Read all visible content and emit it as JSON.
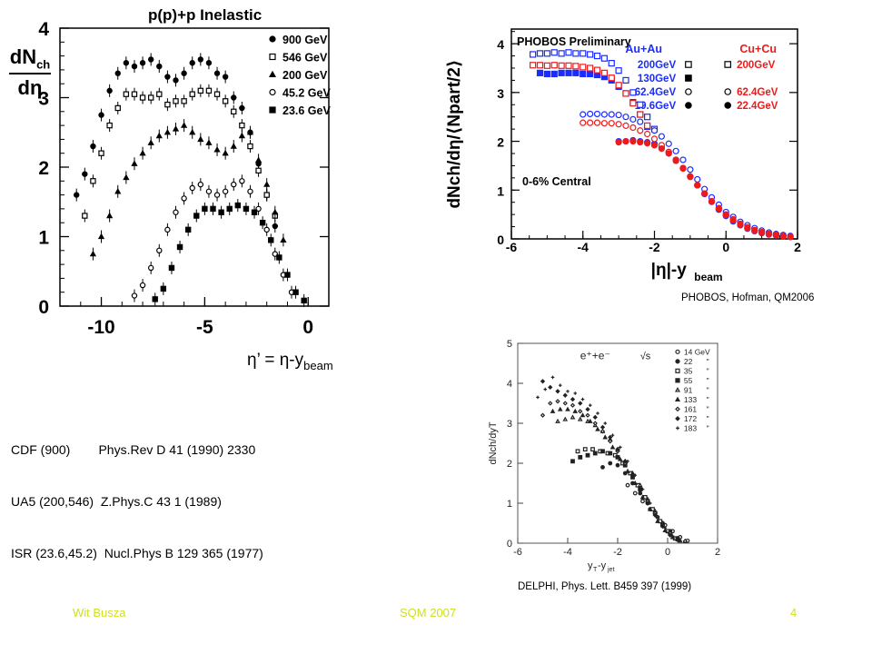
{
  "left_chart": {
    "ylabel_num": "dN",
    "ylabel_num_sub": "ch",
    "ylabel_den": "dη",
    "xaxis_note_lhs": "η’ = η-y",
    "xaxis_note_sub": "beam"
  },
  "references": {
    "line1": "CDF (900)        Phys.Rev D 41 (1990) 2330",
    "line2": "UA5 (200,546)  Z.Phys.C 43 1 (1989)",
    "line3": "ISR (23.6,45.2)  Nucl.Phys B 129 365 (1977)"
  },
  "phobos_credit": "PHOBOS, Hofman, QM2006",
  "delphi_credit": "DELPHI, Phys. Lett. B459 397 (1999)",
  "footer": {
    "author": "Wit Busza",
    "conference": "SQM 2007",
    "page_number": "4"
  },
  "chart_data": [
    {
      "type": "scatter",
      "title": "p(p)+p Inelastic",
      "xlabel": "η’ = η-y_beam",
      "ylabel": "dN_ch/dη",
      "xlim": [
        -12,
        1
      ],
      "ylim": [
        0,
        4
      ],
      "xticks": [
        -10,
        -5,
        0
      ],
      "yticks": [
        0,
        1,
        2,
        3,
        4
      ],
      "legend_position": "top-right",
      "series": [
        {
          "name": "900 GeV",
          "marker": "filled-circle",
          "x": [
            -11.2,
            -10.8,
            -10.4,
            -10.0,
            -9.6,
            -9.2,
            -8.8,
            -8.4,
            -8.0,
            -7.6,
            -7.2,
            -6.8,
            -6.4,
            -6.0,
            -5.6,
            -5.2,
            -4.8,
            -4.4,
            -4.0,
            -3.6,
            -3.2,
            -2.8,
            -2.4,
            -2.0,
            -1.6
          ],
          "y": [
            1.6,
            1.9,
            2.3,
            2.75,
            3.1,
            3.35,
            3.5,
            3.45,
            3.5,
            3.55,
            3.45,
            3.3,
            3.25,
            3.35,
            3.5,
            3.55,
            3.5,
            3.35,
            3.3,
            3.0,
            2.85,
            2.5,
            2.05,
            1.6,
            1.15
          ]
        },
        {
          "name": "546 GeV",
          "marker": "open-square",
          "x": [
            -10.8,
            -10.4,
            -10.0,
            -9.6,
            -9.2,
            -8.8,
            -8.4,
            -8.0,
            -7.6,
            -7.2,
            -6.8,
            -6.4,
            -6.0,
            -5.6,
            -5.2,
            -4.8,
            -4.4,
            -4.0,
            -3.6,
            -3.2,
            -2.8,
            -2.4,
            -2.0,
            -1.6
          ],
          "y": [
            1.3,
            1.8,
            2.2,
            2.6,
            2.85,
            3.05,
            3.05,
            3.0,
            3.0,
            3.05,
            2.9,
            2.95,
            2.95,
            3.05,
            3.1,
            3.1,
            3.05,
            2.95,
            2.8,
            2.6,
            2.3,
            1.95,
            1.6,
            1.3
          ]
        },
        {
          "name": "200 GeV",
          "marker": "filled-triangle",
          "x": [
            -10.4,
            -10.0,
            -9.6,
            -9.2,
            -8.8,
            -8.4,
            -8.0,
            -7.6,
            -7.2,
            -6.8,
            -6.4,
            -6.0,
            -5.6,
            -5.2,
            -4.8,
            -4.4,
            -4.0,
            -3.6,
            -3.2,
            -2.8,
            -2.4,
            -2.0,
            -1.6,
            -1.2
          ],
          "y": [
            0.75,
            1.0,
            1.3,
            1.65,
            1.85,
            2.05,
            2.2,
            2.35,
            2.45,
            2.5,
            2.55,
            2.6,
            2.5,
            2.4,
            2.35,
            2.25,
            2.2,
            2.3,
            2.45,
            2.5,
            2.1,
            1.75,
            1.35,
            0.95
          ]
        },
        {
          "name": "45.2 GeV",
          "marker": "open-circle",
          "x": [
            -8.4,
            -8.0,
            -7.6,
            -7.2,
            -6.8,
            -6.4,
            -6.0,
            -5.6,
            -5.2,
            -4.8,
            -4.4,
            -4.0,
            -3.6,
            -3.2,
            -2.8,
            -2.4,
            -2.0,
            -1.6,
            -1.2,
            -0.8
          ],
          "y": [
            0.15,
            0.3,
            0.55,
            0.8,
            1.1,
            1.35,
            1.55,
            1.7,
            1.75,
            1.65,
            1.6,
            1.65,
            1.75,
            1.8,
            1.65,
            1.4,
            1.1,
            0.75,
            0.45,
            0.2
          ]
        },
        {
          "name": "23.6 GeV",
          "marker": "filled-square",
          "x": [
            -7.4,
            -7.0,
            -6.6,
            -6.2,
            -5.8,
            -5.4,
            -5.0,
            -4.6,
            -4.2,
            -3.8,
            -3.4,
            -3.0,
            -2.6,
            -2.2,
            -1.8,
            -1.4,
            -1.0,
            -0.6,
            -0.2
          ],
          "y": [
            0.1,
            0.25,
            0.55,
            0.85,
            1.1,
            1.3,
            1.4,
            1.4,
            1.35,
            1.4,
            1.45,
            1.4,
            1.35,
            1.2,
            0.95,
            0.7,
            0.45,
            0.2,
            0.08
          ]
        }
      ]
    },
    {
      "type": "scatter",
      "title": "PHOBOS Preliminary",
      "xlabel": "|η|-y_beam",
      "ylabel": "dN_ch/dη/⟨N_part/2⟩",
      "xlim": [
        -6,
        2
      ],
      "ylim": [
        0,
        4.3
      ],
      "xticks": [
        -6,
        -4,
        -2,
        0,
        2
      ],
      "yticks": [
        0,
        1,
        2,
        3,
        4
      ],
      "annotation": "0-6% Central",
      "legend_headers": [
        "Au+Au",
        "Cu+Cu"
      ],
      "series": [
        {
          "name": "Au+Au 200GeV",
          "color": "#1a2cff",
          "marker": "open-square",
          "x": [
            -5.4,
            -5.2,
            -5.0,
            -4.8,
            -4.6,
            -4.4,
            -4.2,
            -4.0,
            -3.8,
            -3.6,
            -3.4,
            -3.2,
            -3.0,
            -2.8,
            -2.6,
            -2.4,
            -2.2,
            -2.0
          ],
          "y": [
            3.78,
            3.8,
            3.8,
            3.82,
            3.8,
            3.82,
            3.8,
            3.8,
            3.78,
            3.75,
            3.7,
            3.6,
            3.45,
            3.25,
            3.0,
            2.75,
            2.5,
            2.25
          ]
        },
        {
          "name": "Au+Au 130GeV",
          "color": "#1a2cff",
          "marker": "filled-square",
          "x": [
            -5.2,
            -5.0,
            -4.8,
            -4.6,
            -4.4,
            -4.2,
            -4.0,
            -3.8,
            -3.6,
            -3.4,
            -3.2,
            -3.0,
            -2.8,
            -2.6,
            -2.4,
            -2.2
          ],
          "y": [
            3.4,
            3.38,
            3.38,
            3.4,
            3.4,
            3.4,
            3.38,
            3.38,
            3.36,
            3.32,
            3.25,
            3.12,
            2.98,
            2.8,
            2.55,
            2.3
          ]
        },
        {
          "name": "Au+Au 62.4GeV",
          "color": "#1a2cff",
          "marker": "open-circle",
          "x": [
            -4.0,
            -3.8,
            -3.6,
            -3.4,
            -3.2,
            -3.0,
            -2.8,
            -2.6,
            -2.4,
            -2.2,
            -2.0,
            -1.8,
            -1.6,
            -1.4,
            -1.2,
            -1.0,
            -0.8,
            -0.6,
            -0.4,
            -0.2,
            0.0,
            0.2,
            0.4,
            0.6,
            0.8,
            1.0,
            1.2,
            1.4,
            1.6,
            1.8
          ],
          "y": [
            2.55,
            2.56,
            2.56,
            2.55,
            2.55,
            2.54,
            2.5,
            2.45,
            2.4,
            2.3,
            2.22,
            2.1,
            1.95,
            1.8,
            1.62,
            1.42,
            1.22,
            1.02,
            0.85,
            0.7,
            0.55,
            0.45,
            0.35,
            0.28,
            0.22,
            0.17,
            0.13,
            0.1,
            0.08,
            0.06
          ]
        },
        {
          "name": "Au+Au 19.6GeV",
          "color": "#1a2cff",
          "marker": "filled-circle",
          "x": [
            -3.0,
            -2.8,
            -2.6,
            -2.4,
            -2.2,
            -2.0,
            -1.8,
            -1.6,
            -1.4,
            -1.2,
            -1.0,
            -0.8,
            -0.6,
            -0.4,
            -0.2,
            0.0,
            0.2,
            0.4,
            0.6,
            0.8,
            1.0,
            1.2,
            1.4,
            1.6,
            1.8
          ],
          "y": [
            2.0,
            2.0,
            2.02,
            2.0,
            1.98,
            1.95,
            1.88,
            1.78,
            1.62,
            1.45,
            1.28,
            1.1,
            0.92,
            0.76,
            0.6,
            0.47,
            0.36,
            0.28,
            0.21,
            0.16,
            0.12,
            0.09,
            0.07,
            0.05,
            0.04
          ]
        },
        {
          "name": "Cu+Cu 200GeV",
          "color": "#ee1a1a",
          "marker": "open-square",
          "x": [
            -5.4,
            -5.2,
            -5.0,
            -4.8,
            -4.6,
            -4.4,
            -4.2,
            -4.0,
            -3.8,
            -3.6,
            -3.4,
            -3.2,
            -3.0,
            -2.8,
            -2.6,
            -2.4,
            -2.2
          ],
          "y": [
            3.56,
            3.56,
            3.55,
            3.56,
            3.55,
            3.55,
            3.54,
            3.52,
            3.5,
            3.46,
            3.4,
            3.3,
            3.15,
            2.98,
            2.78,
            2.55,
            2.32
          ]
        },
        {
          "name": "Cu+Cu 62.4GeV",
          "color": "#ee1a1a",
          "marker": "open-circle",
          "x": [
            -4.0,
            -3.8,
            -3.6,
            -3.4,
            -3.2,
            -3.0,
            -2.8,
            -2.6,
            -2.4,
            -2.2,
            -2.0,
            -1.8,
            -1.6,
            -1.4,
            -1.2,
            -1.0,
            -0.8,
            -0.6,
            -0.4,
            -0.2,
            0.0,
            0.2,
            0.4,
            0.6,
            0.8,
            1.0,
            1.2,
            1.4,
            1.6
          ],
          "y": [
            2.38,
            2.38,
            2.38,
            2.37,
            2.37,
            2.35,
            2.32,
            2.28,
            2.22,
            2.15,
            2.05,
            1.92,
            1.78,
            1.62,
            1.45,
            1.28,
            1.1,
            0.93,
            0.77,
            0.63,
            0.5,
            0.4,
            0.31,
            0.24,
            0.18,
            0.14,
            0.1,
            0.08,
            0.06
          ]
        },
        {
          "name": "Cu+Cu 22.4GeV",
          "color": "#ee1a1a",
          "marker": "filled-circle",
          "x": [
            -3.0,
            -2.8,
            -2.6,
            -2.4,
            -2.2,
            -2.0,
            -1.8,
            -1.6,
            -1.4,
            -1.2,
            -1.0,
            -0.8,
            -0.6,
            -0.4,
            -0.2,
            0.0,
            0.2,
            0.4,
            0.6,
            0.8,
            1.0,
            1.2,
            1.4,
            1.6,
            1.8
          ],
          "y": [
            1.98,
            2.0,
            2.0,
            1.98,
            1.96,
            1.92,
            1.85,
            1.75,
            1.6,
            1.44,
            1.27,
            1.1,
            0.93,
            0.77,
            0.62,
            0.49,
            0.38,
            0.29,
            0.22,
            0.17,
            0.13,
            0.1,
            0.07,
            0.05,
            0.04
          ]
        }
      ]
    },
    {
      "type": "scatter",
      "title": "e⁺+e⁻",
      "xlabel": "y_T-y_jet",
      "ylabel": "dN_ch/dy_T",
      "xlim": [
        -6,
        2
      ],
      "ylim": [
        0,
        5
      ],
      "xticks": [
        -6,
        -4,
        -2,
        0,
        2
      ],
      "yticks": [
        0,
        1,
        2,
        3,
        4,
        5
      ],
      "legend_title": "√s",
      "series": [
        {
          "name": "14 GeV",
          "marker": "open-circle",
          "x": [
            -1.6,
            -1.3,
            -1.0,
            -0.7,
            -0.4,
            -0.1,
            0.2,
            0.5,
            0.8
          ],
          "y": [
            1.45,
            1.25,
            1.05,
            0.85,
            0.65,
            0.45,
            0.3,
            0.15,
            0.06
          ]
        },
        {
          "name": "22",
          "marker": "filled-circle",
          "x": [
            -2.6,
            -2.3,
            -2.0,
            -1.7,
            -1.4,
            -1.1,
            -0.8,
            -0.5,
            -0.2,
            0.1,
            0.4
          ],
          "y": [
            1.9,
            2.0,
            1.95,
            1.75,
            1.5,
            1.25,
            1.0,
            0.75,
            0.5,
            0.3,
            0.12
          ]
        },
        {
          "name": "35",
          "marker": "open-square",
          "x": [
            -3.6,
            -3.3,
            -3.0,
            -2.7,
            -2.4,
            -2.1,
            -1.8,
            -1.5,
            -1.2,
            -0.9,
            -0.6,
            -0.3,
            0.0,
            0.3
          ],
          "y": [
            2.3,
            2.35,
            2.35,
            2.3,
            2.25,
            2.2,
            2.0,
            1.75,
            1.45,
            1.15,
            0.85,
            0.55,
            0.3,
            0.12
          ]
        },
        {
          "name": "55",
          "marker": "filled-square",
          "x": [
            -3.8,
            -3.5,
            -3.2,
            -2.9,
            -2.6,
            -2.3,
            -2.0,
            -1.7,
            -1.4,
            -1.1,
            -0.8,
            -0.5,
            -0.2,
            0.1,
            0.4
          ],
          "y": [
            2.05,
            2.15,
            2.2,
            2.25,
            2.3,
            2.25,
            2.15,
            1.95,
            1.65,
            1.35,
            1.05,
            0.75,
            0.45,
            0.25,
            0.1
          ]
        },
        {
          "name": "91",
          "marker": "open-triangle",
          "x": [
            -4.4,
            -4.1,
            -3.8,
            -3.5,
            -3.2,
            -2.9,
            -2.6,
            -2.3,
            -2.0,
            -1.7,
            -1.4,
            -1.1,
            -0.8,
            -0.5,
            -0.2,
            0.1,
            0.4,
            0.7
          ],
          "y": [
            3.05,
            3.1,
            3.15,
            3.1,
            3.05,
            2.95,
            2.8,
            2.6,
            2.35,
            2.05,
            1.75,
            1.45,
            1.1,
            0.8,
            0.5,
            0.28,
            0.12,
            0.05
          ]
        },
        {
          "name": "133",
          "marker": "filled-triangle",
          "x": [
            -4.6,
            -4.3,
            -4.0,
            -3.7,
            -3.4,
            -3.1,
            -2.8,
            -2.5,
            -2.2,
            -1.9,
            -1.6,
            -1.3,
            -1.0,
            -0.7,
            -0.4,
            -0.1,
            0.2,
            0.5
          ],
          "y": [
            3.3,
            3.35,
            3.35,
            3.3,
            3.2,
            3.05,
            2.85,
            2.65,
            2.4,
            2.1,
            1.8,
            1.5,
            1.15,
            0.85,
            0.55,
            0.32,
            0.15,
            0.06
          ]
        },
        {
          "name": "161",
          "marker": "open-diamond",
          "x": [
            -5.0,
            -4.7,
            -4.4,
            -4.1,
            -3.8,
            -3.5,
            -3.2,
            -2.9,
            -2.6,
            -2.3,
            -2.0,
            -1.7,
            -1.4,
            -1.1,
            -0.8,
            -0.5,
            -0.2,
            0.1,
            0.4,
            0.7
          ],
          "y": [
            3.2,
            3.5,
            3.55,
            3.5,
            3.45,
            3.3,
            3.2,
            3.0,
            2.8,
            2.55,
            2.3,
            2.0,
            1.7,
            1.35,
            1.05,
            0.75,
            0.45,
            0.25,
            0.1,
            0.05
          ]
        },
        {
          "name": "172",
          "marker": "filled-diamond",
          "x": [
            -5.0,
            -4.7,
            -4.4,
            -4.1,
            -3.8,
            -3.5,
            -3.2,
            -2.9,
            -2.6,
            -2.3,
            -2.0,
            -1.7,
            -1.4,
            -1.1,
            -0.8,
            -0.5,
            -0.2,
            0.1,
            0.4
          ],
          "y": [
            4.05,
            3.9,
            3.8,
            3.7,
            3.6,
            3.5,
            3.35,
            3.15,
            2.9,
            2.65,
            2.35,
            2.05,
            1.7,
            1.35,
            1.0,
            0.7,
            0.42,
            0.2,
            0.08
          ]
        },
        {
          "name": "183",
          "marker": "plus",
          "x": [
            -5.2,
            -4.9,
            -4.6,
            -4.3,
            -4.0,
            -3.7,
            -3.4,
            -3.1,
            -2.8,
            -2.5,
            -2.2,
            -1.9,
            -1.6,
            -1.3,
            -1.0,
            -0.7,
            -0.4,
            -0.1,
            0.2,
            0.5
          ],
          "y": [
            3.65,
            3.85,
            4.15,
            3.95,
            3.8,
            3.75,
            3.6,
            3.45,
            3.25,
            3.0,
            2.7,
            2.4,
            2.05,
            1.7,
            1.35,
            1.0,
            0.65,
            0.38,
            0.18,
            0.07
          ]
        }
      ]
    }
  ]
}
